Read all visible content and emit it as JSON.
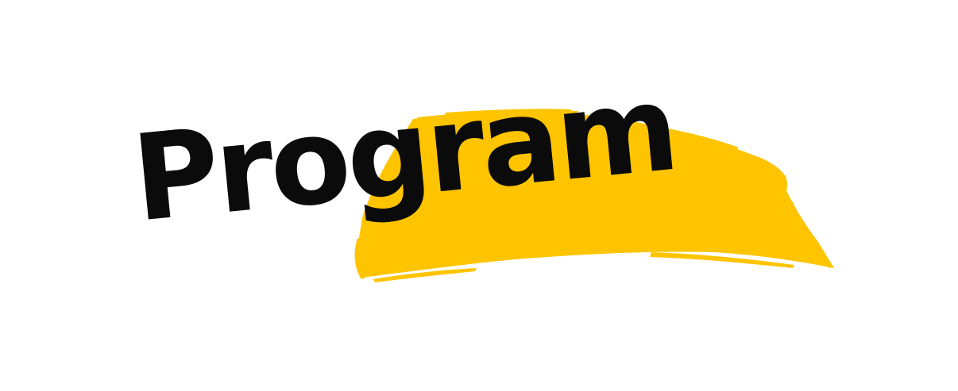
{
  "title": "Program",
  "colors": {
    "background": "#ffffff",
    "brush": "#FFC400",
    "text": "#0b0b0b"
  },
  "decoration": {
    "brush_stroke": "yellow-paint-brush-stroke"
  }
}
